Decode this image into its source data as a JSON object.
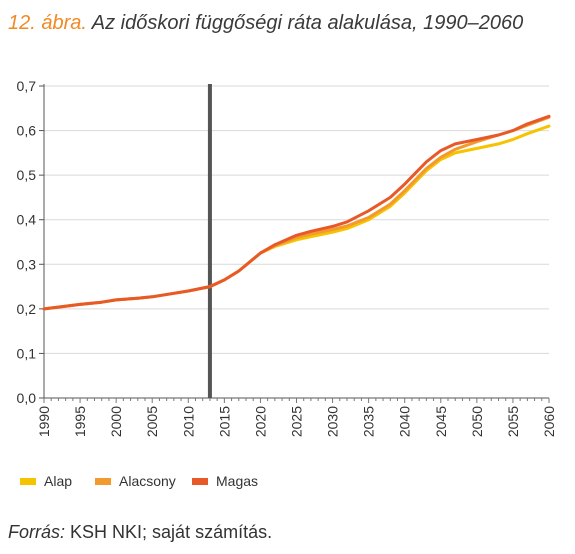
{
  "figure": {
    "number_label": "12. ábra.",
    "title": "Az időskori függőségi ráta alakulása, 1990–2060"
  },
  "source": {
    "label": "Forrás:",
    "text": "KSH NKI; saját számítás."
  },
  "chart_data": {
    "type": "line",
    "title": "Az időskori függőségi ráta alakulása, 1990–2060",
    "xlabel": "",
    "ylabel": "",
    "xlim": [
      1990,
      2060
    ],
    "ylim": [
      0,
      0.7
    ],
    "x_ticks": [
      1990,
      1995,
      2000,
      2005,
      2010,
      2015,
      2020,
      2025,
      2030,
      2035,
      2040,
      2045,
      2050,
      2055,
      2060
    ],
    "y_ticks": [
      "0,0",
      "0,1",
      "0,2",
      "0,3",
      "0,4",
      "0,5",
      "0,6",
      "0,7"
    ],
    "y_tick_values": [
      0,
      0.1,
      0.2,
      0.3,
      0.4,
      0.5,
      0.6,
      0.7
    ],
    "grid": "horizontal",
    "legend_position": "bottom",
    "vertical_marker": {
      "x": 2013,
      "color": "#555555"
    },
    "x": [
      1990,
      1992,
      1995,
      1998,
      2000,
      2003,
      2005,
      2008,
      2010,
      2013,
      2015,
      2017,
      2020,
      2022,
      2025,
      2027,
      2030,
      2032,
      2035,
      2038,
      2040,
      2043,
      2045,
      2047,
      2050,
      2053,
      2055,
      2057,
      2060
    ],
    "series": [
      {
        "name": "Alap",
        "color": "#f5c300",
        "values": [
          0.2,
          0.204,
          0.21,
          0.215,
          0.22,
          0.224,
          0.227,
          0.235,
          0.24,
          0.25,
          0.265,
          0.285,
          0.325,
          0.34,
          0.355,
          0.362,
          0.372,
          0.38,
          0.4,
          0.43,
          0.46,
          0.51,
          0.535,
          0.55,
          0.56,
          0.57,
          0.58,
          0.593,
          0.61
        ]
      },
      {
        "name": "Alacsony",
        "color": "#f39a2e",
        "values": [
          0.2,
          0.204,
          0.21,
          0.215,
          0.22,
          0.224,
          0.227,
          0.235,
          0.24,
          0.25,
          0.265,
          0.285,
          0.325,
          0.342,
          0.36,
          0.368,
          0.378,
          0.386,
          0.405,
          0.435,
          0.465,
          0.515,
          0.54,
          0.558,
          0.575,
          0.59,
          0.6,
          0.612,
          0.63
        ]
      },
      {
        "name": "Magas",
        "color": "#e8592a",
        "values": [
          0.2,
          0.204,
          0.21,
          0.215,
          0.22,
          0.224,
          0.227,
          0.235,
          0.24,
          0.25,
          0.265,
          0.285,
          0.325,
          0.344,
          0.365,
          0.374,
          0.385,
          0.395,
          0.42,
          0.45,
          0.48,
          0.53,
          0.555,
          0.57,
          0.58,
          0.59,
          0.6,
          0.615,
          0.632
        ]
      }
    ]
  }
}
